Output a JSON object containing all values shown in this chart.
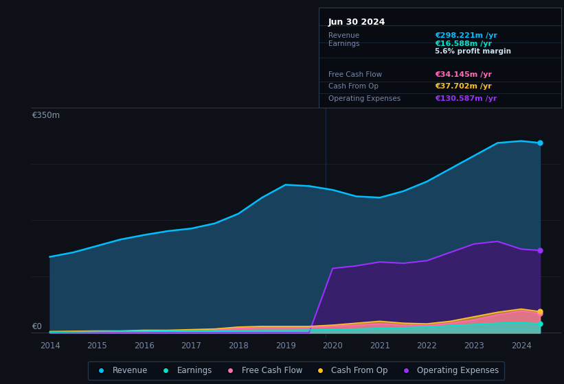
{
  "bg_color": "#0d1117",
  "plot_bg_color": "#0d1117",
  "title": "Jun 30 2024",
  "ylabel_top": "€350m",
  "ylabel_bottom": "€0",
  "years": [
    2014,
    2014.5,
    2015,
    2015.5,
    2016,
    2016.5,
    2017,
    2017.5,
    2018,
    2018.5,
    2019,
    2019.5,
    2020,
    2020.5,
    2021,
    2021.5,
    2022,
    2022.5,
    2023,
    2023.5,
    2024,
    2024.4
  ],
  "revenue": [
    118,
    125,
    135,
    145,
    152,
    158,
    162,
    170,
    185,
    210,
    230,
    228,
    222,
    212,
    210,
    220,
    235,
    255,
    275,
    295,
    298,
    295
  ],
  "earnings": [
    1,
    1.5,
    2,
    2.5,
    2.5,
    3,
    3,
    3,
    3.5,
    4,
    4,
    4.5,
    5,
    6,
    7,
    8,
    9,
    11,
    13,
    15,
    16,
    14
  ],
  "free_cash_flow": [
    1,
    1.5,
    2,
    2,
    2,
    2.5,
    3,
    4,
    7,
    8,
    8,
    8,
    10,
    12,
    14,
    12,
    11,
    15,
    20,
    28,
    34,
    30
  ],
  "cash_from_op": [
    2,
    2.5,
    3,
    3,
    4,
    4,
    5,
    6,
    9,
    10,
    10,
    10,
    12,
    15,
    18,
    15,
    14,
    18,
    25,
    32,
    37,
    33
  ],
  "operating_expenses": [
    0,
    0,
    0,
    0,
    0,
    0,
    0,
    0,
    0,
    0,
    0,
    0,
    100,
    104,
    110,
    108,
    112,
    125,
    138,
    142,
    130,
    128
  ],
  "revenue_color": "#00bfff",
  "earnings_color": "#00e5cc",
  "free_cash_flow_color": "#ff6eb4",
  "cash_from_op_color": "#ffc125",
  "operating_expenses_color": "#9b30ff",
  "revenue_fill": "#1a4a6b",
  "operating_expenses_fill": "#3d1a6e",
  "info_box": {
    "date": "Jun 30 2024",
    "revenue_val": "€298.221m",
    "earnings_val": "€16.588m",
    "profit_margin": "5.6%",
    "fcf_val": "€34.145m",
    "cash_from_op_val": "€37.702m",
    "op_exp_val": "€130.587m"
  },
  "legend_labels": [
    "Revenue",
    "Earnings",
    "Free Cash Flow",
    "Cash From Op",
    "Operating Expenses"
  ],
  "legend_colors": [
    "#00bfff",
    "#00e5cc",
    "#ff6eb4",
    "#ffc125",
    "#9b30ff"
  ],
  "xmin": 2013.6,
  "xmax": 2024.85,
  "ymin": -8,
  "ymax": 350
}
